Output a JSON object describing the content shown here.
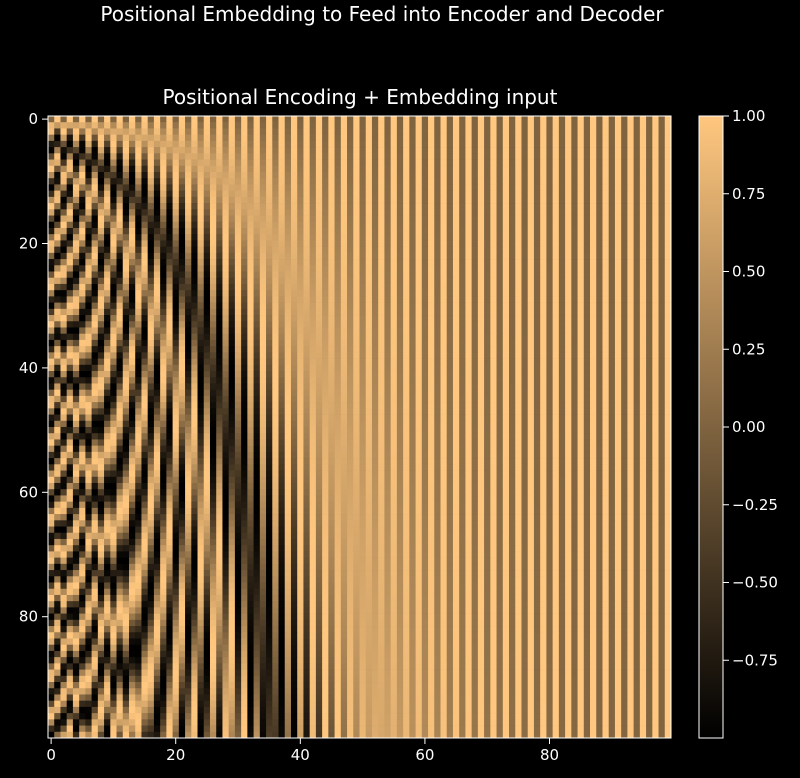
{
  "figure": {
    "suptitle": "Positional Embedding to Feed into Encoder and Decoder"
  },
  "chart_data": {
    "type": "heatmap",
    "title": "Positional Encoding + Embedding input",
    "xlabel": "",
    "ylabel": "",
    "colormap": "copper",
    "colormap_colors": {
      "low": "#000000",
      "high": "#ffc77f"
    },
    "rows": 100,
    "cols": 100,
    "value_formula": "sin(pos / 10000^(2i/100)) for even column 2i, cos(pos / 10000^(2i/100)) for odd column 2i+1",
    "x_ticks": [
      0,
      20,
      40,
      60,
      80
    ],
    "x_tick_labels": [
      "0",
      "20",
      "40",
      "60",
      "80"
    ],
    "y_ticks": [
      0,
      20,
      40,
      60,
      80
    ],
    "y_tick_labels": [
      "0",
      "20",
      "40",
      "60",
      "80"
    ],
    "xlim": [
      0,
      99
    ],
    "ylim": [
      99,
      0
    ],
    "colorbar": {
      "range": [
        -1.0,
        1.0
      ],
      "ticks": [
        1.0,
        0.75,
        0.5,
        0.25,
        0.0,
        -0.25,
        -0.5,
        -0.75
      ],
      "tick_labels": [
        "1.00",
        "0.75",
        "0.50",
        "0.25",
        "0.00",
        "−0.25",
        "−0.50",
        "−0.75"
      ]
    }
  }
}
